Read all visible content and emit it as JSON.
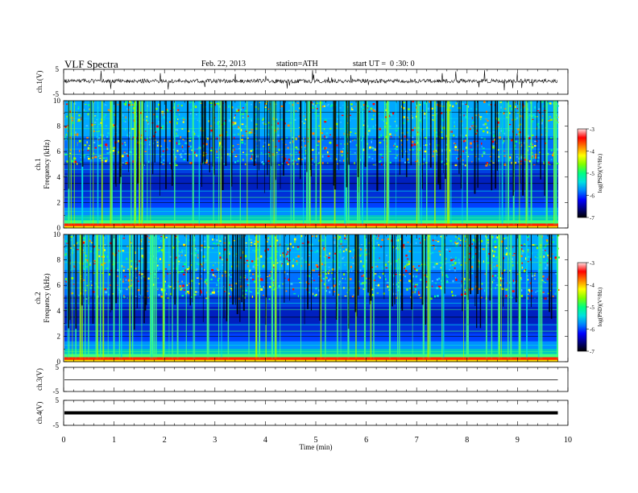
{
  "header": {
    "title": "VLF Spectra",
    "date": "Feb. 22, 2013",
    "station": "station=ATH",
    "start": "start UT =  0 :30: 0"
  },
  "chart_data": [
    {
      "type": "line",
      "name": "ch1-waveform",
      "ylabel": "ch.1(V)",
      "ylim": [
        -5,
        5
      ],
      "yticks": [
        "5",
        "-5"
      ],
      "xlim": [
        0,
        10
      ],
      "trace_end_min": 9.8
    },
    {
      "type": "heatmap",
      "name": "ch1-spectrogram",
      "ylabel": "ch.1\nFrequency (kHz)",
      "ylabel_lines": [
        "ch.1",
        "Frequency (kHz)"
      ],
      "ylim": [
        0,
        10
      ],
      "yticks": [
        "0",
        "2",
        "4",
        "6",
        "8",
        "10"
      ],
      "colorbar": {
        "label": "log(PSD)(V²/Hz)",
        "range": [
          -7,
          -3
        ],
        "ticks": [
          "-3",
          "-4",
          "-5",
          "-6",
          "-7"
        ]
      }
    },
    {
      "type": "heatmap",
      "name": "ch2-spectrogram",
      "ylabel_lines": [
        "ch.2",
        "Frequency (kHz)"
      ],
      "ylim": [
        0,
        10
      ],
      "yticks": [
        "0",
        "2",
        "4",
        "6",
        "8",
        "10"
      ],
      "colorbar": {
        "label": "log(PSD)(V²/Hz)",
        "range": [
          -7,
          -3
        ],
        "ticks": [
          "-3",
          "-4",
          "-5",
          "-6",
          "-7"
        ]
      }
    },
    {
      "type": "line",
      "name": "ch3-waveform",
      "ylabel": "ch.3(V)",
      "ylim": [
        -5,
        5
      ],
      "yticks": [
        "5",
        "-5"
      ]
    },
    {
      "type": "line",
      "name": "ch4-waveform",
      "ylabel": "ch.4(V)",
      "ylim": [
        -5,
        5
      ],
      "yticks": [
        "5",
        "-5"
      ]
    }
  ],
  "xaxis": {
    "label": "Time (min)",
    "ticks": [
      "0",
      "1",
      "2",
      "3",
      "4",
      "5",
      "6",
      "7",
      "8",
      "9",
      "10"
    ],
    "xlim": [
      0,
      10
    ]
  },
  "colors": {
    "colormap": [
      "#000000",
      "#000080",
      "#0000ff",
      "#0080ff",
      "#00e0e0",
      "#00ff80",
      "#80ff00",
      "#ffff00",
      "#ff8000",
      "#ff0000",
      "#ffe0e0"
    ]
  }
}
